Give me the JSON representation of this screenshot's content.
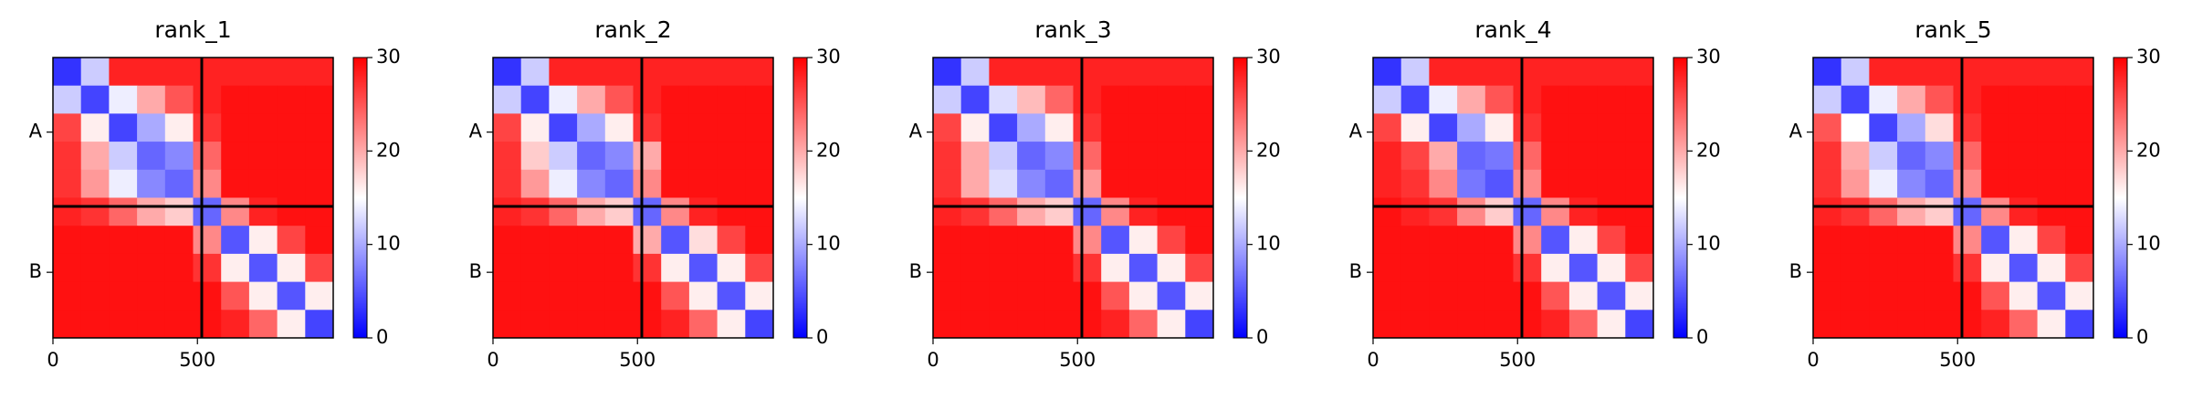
{
  "chart_data": [
    {
      "type": "heatmap",
      "title": "rank_1",
      "colormap": "bwr",
      "xlim": [
        0,
        970
      ],
      "ylim": [
        970,
        0
      ],
      "xticks": [
        0,
        500
      ],
      "yticks": [
        {
          "value": 258,
          "label": "A"
        },
        {
          "value": 743,
          "label": "B"
        }
      ],
      "boundaries": [
        515
      ],
      "clim": [
        0,
        30
      ],
      "cticks": [
        0,
        10,
        20,
        30
      ],
      "matrix": [
        [
          3,
          12,
          28,
          28,
          28,
          28,
          28,
          28,
          28,
          28
        ],
        [
          12,
          4,
          14,
          20,
          25,
          28,
          29,
          29,
          29,
          29
        ],
        [
          26,
          16,
          4,
          10,
          16,
          27,
          29,
          29,
          29,
          29
        ],
        [
          27,
          20,
          12,
          6,
          8,
          24,
          29,
          29,
          29,
          29
        ],
        [
          27,
          21,
          14,
          8,
          6,
          22,
          29,
          29,
          29,
          29
        ],
        [
          28,
          27,
          24,
          20,
          18,
          6,
          22,
          28,
          29,
          29
        ],
        [
          29,
          29,
          29,
          29,
          29,
          22,
          5,
          16,
          26,
          29
        ],
        [
          29,
          29,
          29,
          29,
          29,
          27,
          16,
          5,
          16,
          26
        ],
        [
          29,
          29,
          29,
          29,
          29,
          29,
          25,
          16,
          5,
          16
        ],
        [
          29,
          29,
          29,
          29,
          29,
          29,
          28,
          24,
          16,
          4
        ]
      ]
    },
    {
      "type": "heatmap",
      "title": "rank_2",
      "colormap": "bwr",
      "xlim": [
        0,
        970
      ],
      "ylim": [
        970,
        0
      ],
      "xticks": [
        0,
        500
      ],
      "yticks": [
        {
          "value": 258,
          "label": "A"
        },
        {
          "value": 743,
          "label": "B"
        }
      ],
      "boundaries": [
        515
      ],
      "clim": [
        0,
        30
      ],
      "cticks": [
        0,
        10,
        20,
        30
      ],
      "matrix": [
        [
          3,
          12,
          28,
          28,
          28,
          28,
          28,
          28,
          28,
          28
        ],
        [
          12,
          4,
          14,
          20,
          25,
          28,
          29,
          29,
          29,
          29
        ],
        [
          26,
          16,
          4,
          10,
          16,
          27,
          29,
          29,
          29,
          29
        ],
        [
          27,
          18,
          12,
          6,
          8,
          20,
          29,
          29,
          29,
          29
        ],
        [
          27,
          21,
          14,
          8,
          6,
          22,
          29,
          29,
          29,
          29
        ],
        [
          28,
          27,
          24,
          20,
          18,
          6,
          22,
          28,
          29,
          29
        ],
        [
          29,
          29,
          29,
          29,
          29,
          20,
          5,
          17,
          26,
          29
        ],
        [
          29,
          29,
          29,
          29,
          29,
          27,
          16,
          5,
          16,
          26
        ],
        [
          29,
          29,
          29,
          29,
          29,
          29,
          25,
          16,
          5,
          16
        ],
        [
          29,
          29,
          29,
          29,
          29,
          29,
          28,
          24,
          16,
          4
        ]
      ]
    },
    {
      "type": "heatmap",
      "title": "rank_3",
      "colormap": "bwr",
      "xlim": [
        0,
        970
      ],
      "ylim": [
        970,
        0
      ],
      "xticks": [
        0,
        500
      ],
      "yticks": [
        {
          "value": 258,
          "label": "A"
        },
        {
          "value": 743,
          "label": "B"
        }
      ],
      "boundaries": [
        515
      ],
      "clim": [
        0,
        30
      ],
      "cticks": [
        0,
        10,
        20,
        30
      ],
      "matrix": [
        [
          3,
          12,
          28,
          28,
          28,
          28,
          28,
          28,
          28,
          28
        ],
        [
          12,
          4,
          13,
          19,
          24,
          28,
          29,
          29,
          29,
          29
        ],
        [
          26,
          16,
          4,
          10,
          16,
          27,
          29,
          29,
          29,
          29
        ],
        [
          27,
          20,
          12,
          6,
          8,
          24,
          29,
          29,
          29,
          29
        ],
        [
          27,
          20,
          13,
          8,
          6,
          21,
          29,
          29,
          29,
          29
        ],
        [
          28,
          27,
          24,
          20,
          18,
          6,
          22,
          28,
          29,
          29
        ],
        [
          29,
          29,
          29,
          29,
          29,
          22,
          5,
          16,
          26,
          29
        ],
        [
          29,
          29,
          29,
          29,
          29,
          27,
          16,
          5,
          16,
          26
        ],
        [
          29,
          29,
          29,
          29,
          29,
          29,
          25,
          16,
          5,
          16
        ],
        [
          29,
          29,
          29,
          29,
          29,
          29,
          28,
          24,
          16,
          4
        ]
      ]
    },
    {
      "type": "heatmap",
      "title": "rank_4",
      "colormap": "bwr",
      "xlim": [
        0,
        970
      ],
      "ylim": [
        970,
        0
      ],
      "xticks": [
        0,
        500
      ],
      "yticks": [
        {
          "value": 258,
          "label": "A"
        },
        {
          "value": 743,
          "label": "B"
        }
      ],
      "boundaries": [
        515
      ],
      "clim": [
        0,
        30
      ],
      "cticks": [
        0,
        10,
        20,
        30
      ],
      "matrix": [
        [
          3,
          12,
          28,
          28,
          28,
          28,
          28,
          28,
          28,
          28
        ],
        [
          12,
          4,
          14,
          20,
          25,
          28,
          29,
          29,
          29,
          29
        ],
        [
          26,
          16,
          4,
          10,
          16,
          27,
          29,
          29,
          29,
          29
        ],
        [
          28,
          26,
          20,
          6,
          7,
          24,
          29,
          29,
          29,
          29
        ],
        [
          28,
          27,
          22,
          7,
          5,
          22,
          29,
          29,
          29,
          29
        ],
        [
          29,
          28,
          27,
          22,
          18,
          6,
          22,
          28,
          29,
          29
        ],
        [
          29,
          29,
          29,
          29,
          29,
          22,
          5,
          16,
          26,
          29
        ],
        [
          29,
          29,
          29,
          29,
          29,
          27,
          16,
          5,
          16,
          26
        ],
        [
          29,
          29,
          29,
          29,
          29,
          29,
          25,
          16,
          5,
          16
        ],
        [
          29,
          29,
          29,
          29,
          29,
          29,
          28,
          24,
          16,
          4
        ]
      ]
    },
    {
      "type": "heatmap",
      "title": "rank_5",
      "colormap": "bwr",
      "xlim": [
        0,
        970
      ],
      "ylim": [
        970,
        0
      ],
      "xticks": [
        0,
        500
      ],
      "yticks": [
        {
          "value": 258,
          "label": "A"
        },
        {
          "value": 743,
          "label": "B"
        }
      ],
      "boundaries": [
        515
      ],
      "clim": [
        0,
        30
      ],
      "cticks": [
        0,
        10,
        20,
        30
      ],
      "matrix": [
        [
          3,
          12,
          28,
          28,
          28,
          28,
          28,
          28,
          28,
          28
        ],
        [
          12,
          4,
          14,
          20,
          25,
          28,
          29,
          29,
          29,
          29
        ],
        [
          25,
          15,
          4,
          10,
          17,
          27,
          29,
          29,
          29,
          29
        ],
        [
          27,
          20,
          12,
          6,
          8,
          24,
          29,
          29,
          29,
          29
        ],
        [
          27,
          21,
          14,
          8,
          6,
          22,
          29,
          29,
          29,
          29
        ],
        [
          28,
          27,
          24,
          20,
          18,
          6,
          22,
          28,
          29,
          29
        ],
        [
          29,
          29,
          29,
          29,
          29,
          22,
          5,
          16,
          26,
          29
        ],
        [
          29,
          29,
          29,
          29,
          29,
          27,
          16,
          5,
          16,
          26
        ],
        [
          29,
          29,
          29,
          29,
          29,
          29,
          25,
          16,
          5,
          16
        ],
        [
          29,
          29,
          29,
          29,
          29,
          29,
          28,
          24,
          16,
          4
        ]
      ]
    }
  ]
}
